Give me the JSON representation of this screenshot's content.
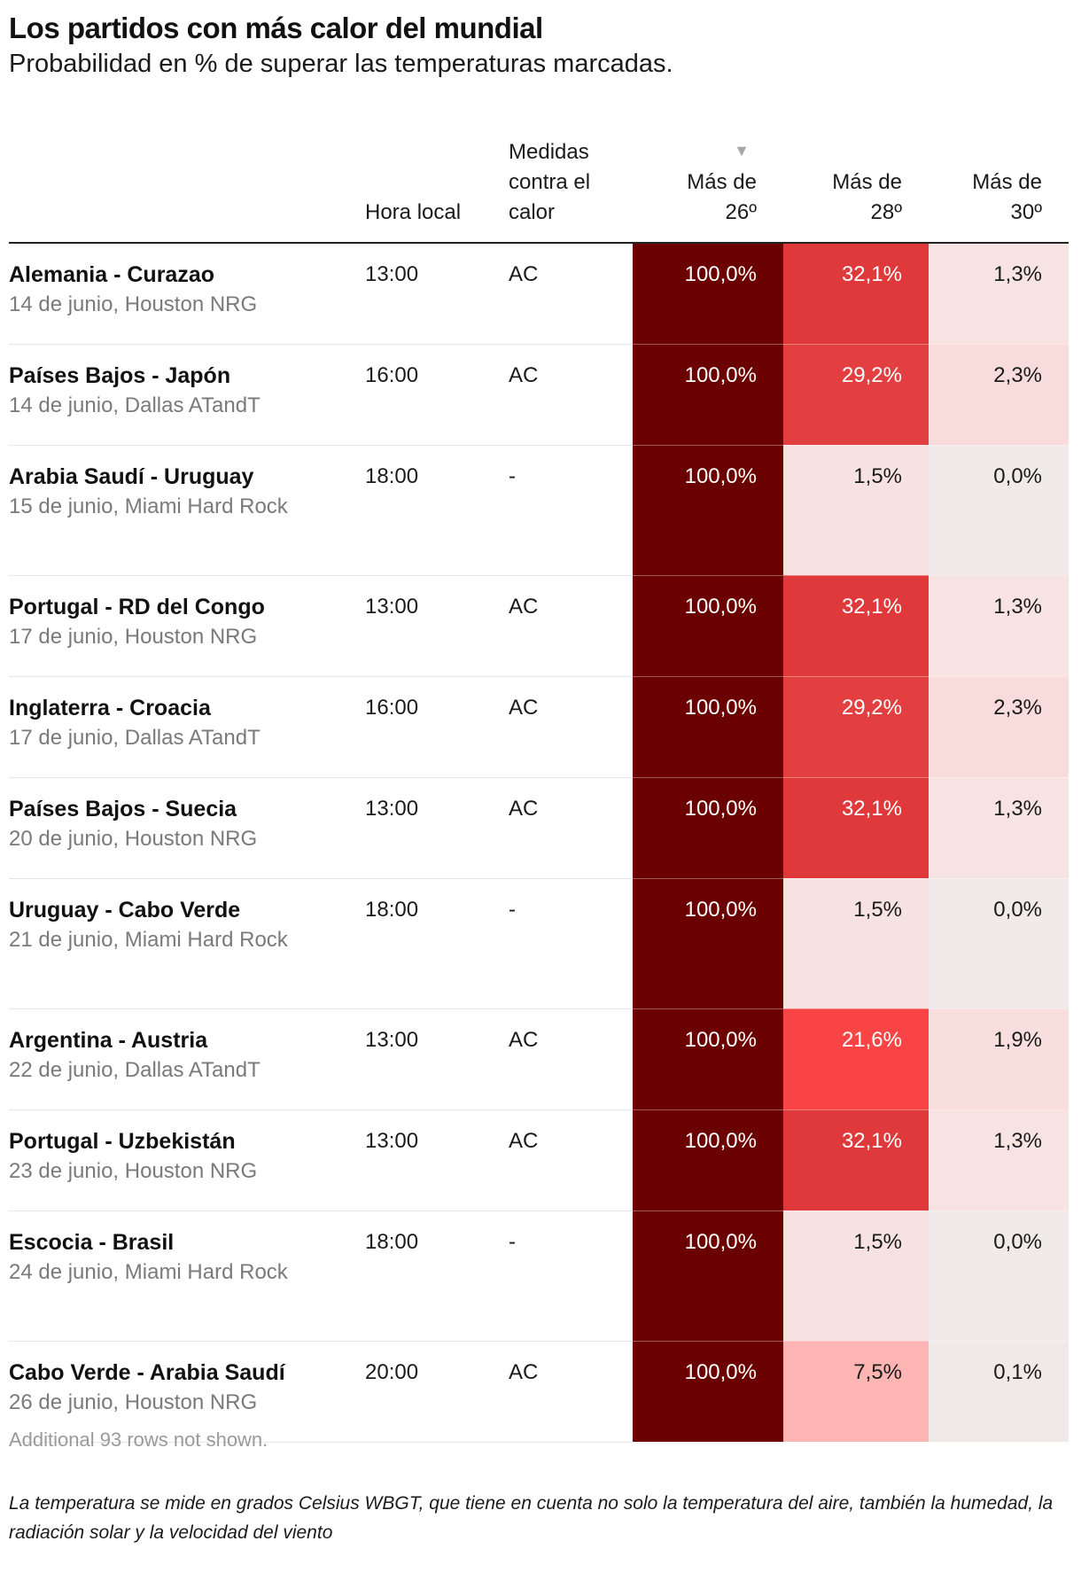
{
  "title": "Los partidos con más calor del mundial",
  "subtitle": "Probabilidad en % de superar las temperaturas marcadas.",
  "columns": {
    "hora": "Hora local",
    "medidas": "Medidas contra el calor",
    "mas26": "Más de 26º",
    "mas28": "Más de 28º",
    "mas30": "Más de 30º"
  },
  "sort_icon": "sort-descending-triangle-icon",
  "note": "Additional 93 rows not shown.",
  "footnote": "La temperatura se mide en grados Celsius WBGT, que tiene en cuenta no solo la temperatura del aire, también la humedad, la radiación solar y la velocidad del viento",
  "chart_data": {
    "type": "table",
    "title": "Los partidos con más calor del mundial",
    "subtitle": "Probabilidad en % de superar las temperaturas marcadas.",
    "sorted_by": "Más de 26º",
    "sort_direction": "descending",
    "rows": [
      {
        "partido": "Alemania - Curazao",
        "info": "14 de junio, Houston NRG",
        "hora": "13:00",
        "medidas": "AC",
        "mas26": "100,0%",
        "mas28": "32,1%",
        "mas30": "1,3%",
        "v26": 100.0,
        "v28": 32.1,
        "v30": 1.3
      },
      {
        "partido": "Países Bajos - Japón",
        "info": "14 de junio, Dallas ATandT",
        "hora": "16:00",
        "medidas": "AC",
        "mas26": "100,0%",
        "mas28": "29,2%",
        "mas30": "2,3%",
        "v26": 100.0,
        "v28": 29.2,
        "v30": 2.3
      },
      {
        "partido": "Arabia Saudí - Uruguay",
        "info": "15 de junio, Miami Hard Rock",
        "hora": "18:00",
        "medidas": "-",
        "mas26": "100,0%",
        "mas28": "1,5%",
        "mas30": "0,0%",
        "v26": 100.0,
        "v28": 1.5,
        "v30": 0.0
      },
      {
        "partido": "Portugal - RD del Congo",
        "info": "17 de junio, Houston NRG",
        "hora": "13:00",
        "medidas": "AC",
        "mas26": "100,0%",
        "mas28": "32,1%",
        "mas30": "1,3%",
        "v26": 100.0,
        "v28": 32.1,
        "v30": 1.3
      },
      {
        "partido": "Inglaterra - Croacia",
        "info": "17 de junio, Dallas ATandT",
        "hora": "16:00",
        "medidas": "AC",
        "mas26": "100,0%",
        "mas28": "29,2%",
        "mas30": "2,3%",
        "v26": 100.0,
        "v28": 29.2,
        "v30": 2.3
      },
      {
        "partido": "Países Bajos - Suecia",
        "info": "20 de junio, Houston NRG",
        "hora": "13:00",
        "medidas": "AC",
        "mas26": "100,0%",
        "mas28": "32,1%",
        "mas30": "1,3%",
        "v26": 100.0,
        "v28": 32.1,
        "v30": 1.3
      },
      {
        "partido": "Uruguay - Cabo Verde",
        "info": "21 de junio, Miami Hard Rock",
        "hora": "18:00",
        "medidas": "-",
        "mas26": "100,0%",
        "mas28": "1,5%",
        "mas30": "0,0%",
        "v26": 100.0,
        "v28": 1.5,
        "v30": 0.0
      },
      {
        "partido": "Argentina - Austria",
        "info": "22 de junio, Dallas ATandT",
        "hora": "13:00",
        "medidas": "AC",
        "mas26": "100,0%",
        "mas28": "21,6%",
        "mas30": "1,9%",
        "v26": 100.0,
        "v28": 21.6,
        "v30": 1.9
      },
      {
        "partido": "Portugal - Uzbekistán",
        "info": "23 de junio, Houston NRG",
        "hora": "13:00",
        "medidas": "AC",
        "mas26": "100,0%",
        "mas28": "32,1%",
        "mas30": "1,3%",
        "v26": 100.0,
        "v28": 32.1,
        "v30": 1.3
      },
      {
        "partido": "Escocia - Brasil",
        "info": "24 de junio, Miami Hard Rock",
        "hora": "18:00",
        "medidas": "-",
        "mas26": "100,0%",
        "mas28": "1,5%",
        "mas30": "0,0%",
        "v26": 100.0,
        "v28": 1.5,
        "v30": 0.0
      },
      {
        "partido": "Cabo Verde - Arabia Saudí",
        "info": "26 de junio, Houston NRG",
        "hora": "20:00",
        "medidas": "AC",
        "mas26": "100,0%",
        "mas28": "7,5%",
        "mas30": "0,1%",
        "v26": 100.0,
        "v28": 7.5,
        "v30": 0.1
      }
    ],
    "cell_colors": {
      "100.0": "#6b0000",
      "32.1": "#e0393b",
      "29.2": "#e33f41",
      "21.6": "#f84444",
      "7.5": "#fdb5b3",
      "2.3": "#f8dcdb",
      "1.9": "#f8dfde",
      "1.5": "#f6e2e1",
      "1.3": "#f6e3e2",
      "0.1": "#f1e9e9",
      "0.0": "#f1eaea"
    },
    "light_text_color": "#ffffff",
    "dark_text_color": "#1a1a1a"
  }
}
